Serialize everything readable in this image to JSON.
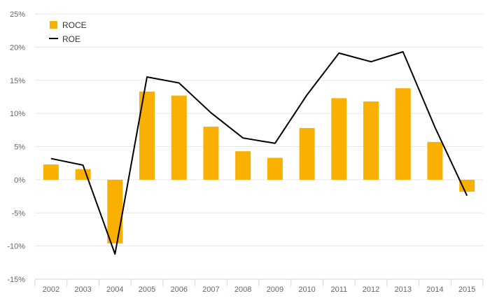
{
  "chart_data": {
    "type": "bar",
    "title": "",
    "xlabel": "",
    "ylabel": "",
    "categories": [
      "2002",
      "2003",
      "2004",
      "2005",
      "2006",
      "2007",
      "2008",
      "2009",
      "2010",
      "2011",
      "2012",
      "2013",
      "2014",
      "2015"
    ],
    "ylim": [
      -15,
      25
    ],
    "y_ticks": [
      -15,
      -10,
      -5,
      0,
      5,
      10,
      15,
      20,
      25
    ],
    "y_tick_labels": [
      "-15%",
      "-10%",
      "-5%",
      "0%",
      "5%",
      "10%",
      "15%",
      "20%",
      "25%"
    ],
    "grid": true,
    "legend_position": "top-left",
    "series": [
      {
        "name": "ROCE",
        "type": "bar",
        "color": "#f9b000",
        "values": [
          2.3,
          1.6,
          -9.6,
          13.3,
          12.7,
          8.0,
          4.3,
          3.3,
          7.8,
          12.3,
          11.8,
          13.8,
          5.7,
          -1.8
        ]
      },
      {
        "name": "ROE",
        "type": "line",
        "color": "#000000",
        "values": [
          3.2,
          2.2,
          -11.2,
          15.5,
          14.6,
          10.1,
          6.3,
          5.5,
          12.8,
          19.1,
          17.8,
          19.3,
          7.9,
          -2.4
        ]
      }
    ]
  }
}
